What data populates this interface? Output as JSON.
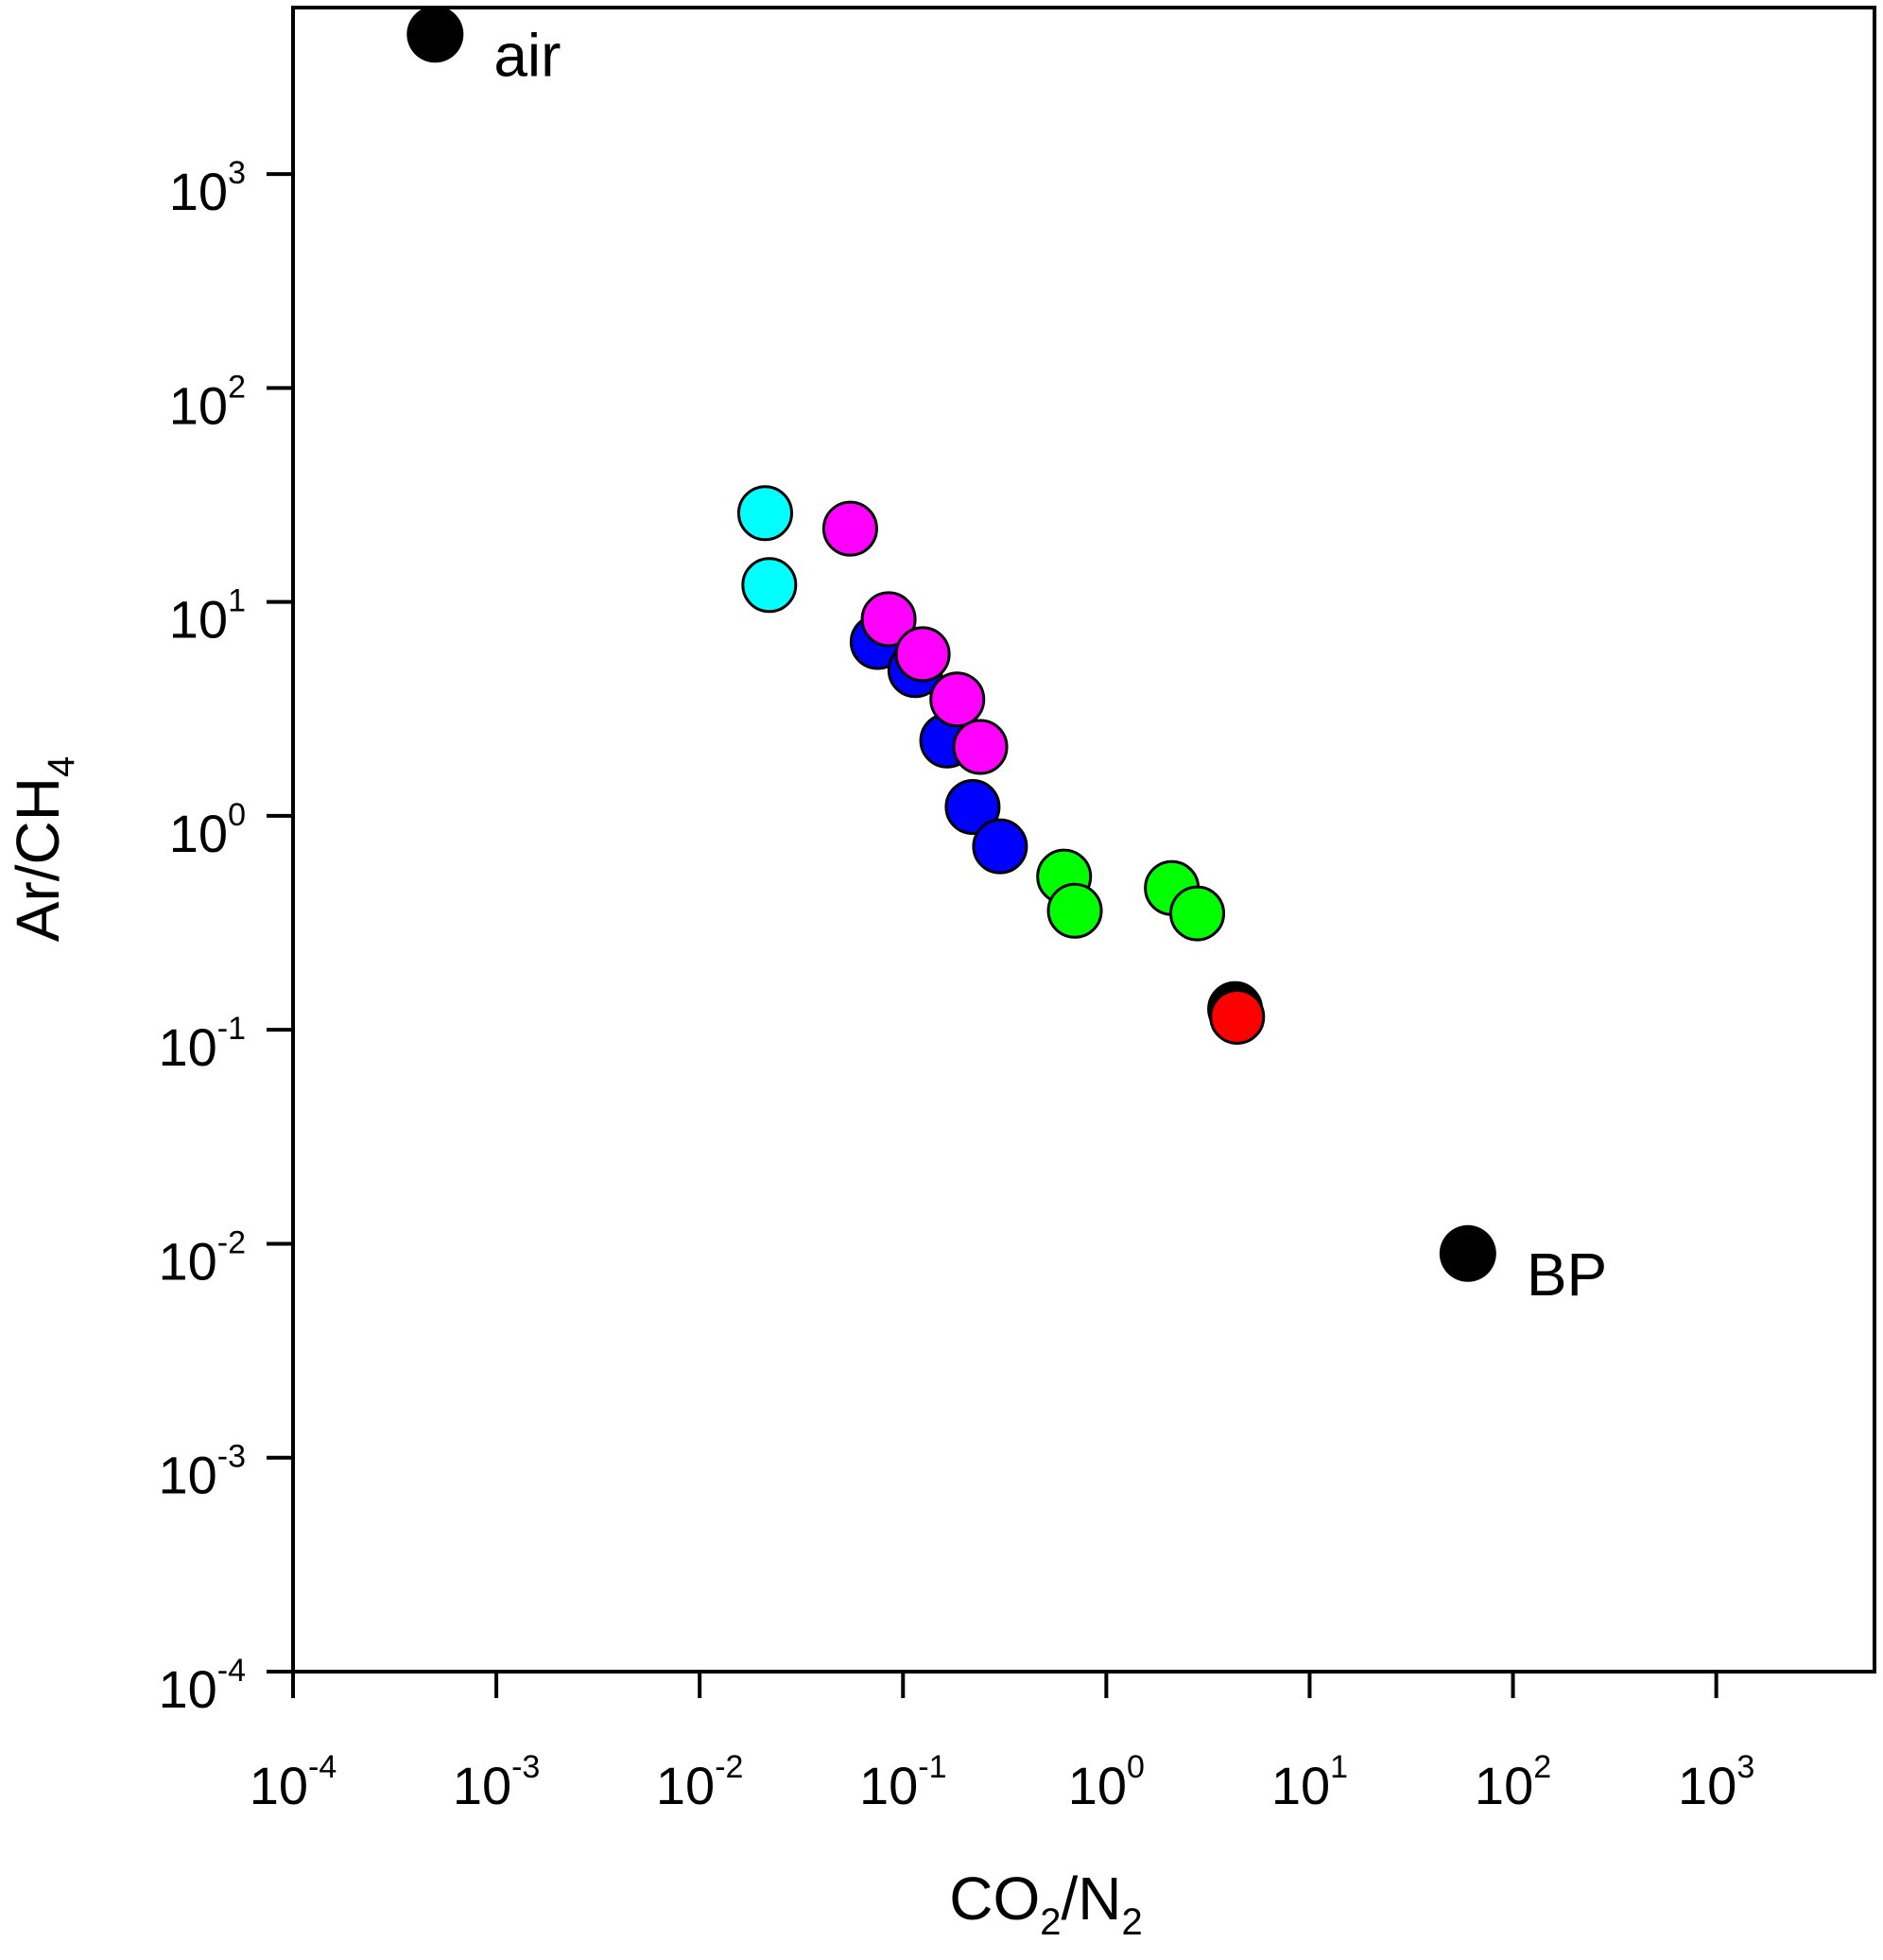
{
  "chart_data": {
    "type": "scatter",
    "x_scale": "log",
    "y_scale": "log",
    "xlim": [
      0.0001,
      6000
    ],
    "ylim": [
      0.0001,
      6000
    ],
    "grid": false,
    "x_label": {
      "parts": [
        {
          "text": "CO"
        },
        {
          "text": "2",
          "sub": true
        },
        {
          "text": "/N"
        },
        {
          "text": "2",
          "sub": true
        }
      ]
    },
    "y_label": {
      "parts": [
        {
          "text": "Ar/CH"
        },
        {
          "text": "4",
          "sub": true
        }
      ]
    },
    "x_ticks": [
      {
        "value": 0.0001,
        "base": "10",
        "exp": "-4"
      },
      {
        "value": 0.001,
        "base": "10",
        "exp": "-3"
      },
      {
        "value": 0.01,
        "base": "10",
        "exp": "-2"
      },
      {
        "value": 0.1,
        "base": "10",
        "exp": "-1"
      },
      {
        "value": 1,
        "base": "10",
        "exp": "0"
      },
      {
        "value": 10,
        "base": "10",
        "exp": "1"
      },
      {
        "value": 100,
        "base": "10",
        "exp": "2"
      },
      {
        "value": 1000,
        "base": "10",
        "exp": "3"
      }
    ],
    "y_ticks": [
      {
        "value": 0.0001,
        "base": "10",
        "exp": "-4"
      },
      {
        "value": 0.001,
        "base": "10",
        "exp": "-3"
      },
      {
        "value": 0.01,
        "base": "10",
        "exp": "-2"
      },
      {
        "value": 0.1,
        "base": "10",
        "exp": "-1"
      },
      {
        "value": 1,
        "base": "10",
        "exp": "0"
      },
      {
        "value": 10,
        "base": "10",
        "exp": "1"
      },
      {
        "value": 100,
        "base": "10",
        "exp": "2"
      },
      {
        "value": 1000,
        "base": "10",
        "exp": "3"
      }
    ],
    "series": [
      {
        "color": "#00ffff",
        "points": [
          [
            0.021,
            26
          ],
          [
            0.022,
            12
          ]
        ]
      },
      {
        "color": "#0000ff",
        "points": [
          [
            0.075,
            6.5
          ],
          [
            0.115,
            4.8
          ],
          [
            0.165,
            2.25
          ],
          [
            0.22,
            1.1
          ],
          [
            0.3,
            0.72
          ]
        ]
      },
      {
        "color": "#ff00ff",
        "points": [
          [
            0.055,
            22
          ],
          [
            0.085,
            8.3
          ],
          [
            0.125,
            5.7
          ],
          [
            0.185,
            3.5
          ],
          [
            0.24,
            2.1
          ]
        ]
      },
      {
        "color": "#00ff00",
        "points": [
          [
            0.62,
            0.52
          ],
          [
            0.7,
            0.36
          ],
          [
            2.1,
            0.46
          ],
          [
            2.8,
            0.35
          ]
        ]
      },
      {
        "color": "#000000",
        "points": [
          [
            4.3,
            0.125
          ]
        ]
      },
      {
        "color": "#ff0000",
        "points": [
          [
            4.4,
            0.115
          ]
        ]
      }
    ],
    "annotations": [
      {
        "label": "air",
        "x": 0.0005,
        "y": 4500,
        "color": "#000000"
      },
      {
        "label": "BP",
        "x": 60,
        "y": 0.009,
        "color": "#000000"
      }
    ]
  }
}
